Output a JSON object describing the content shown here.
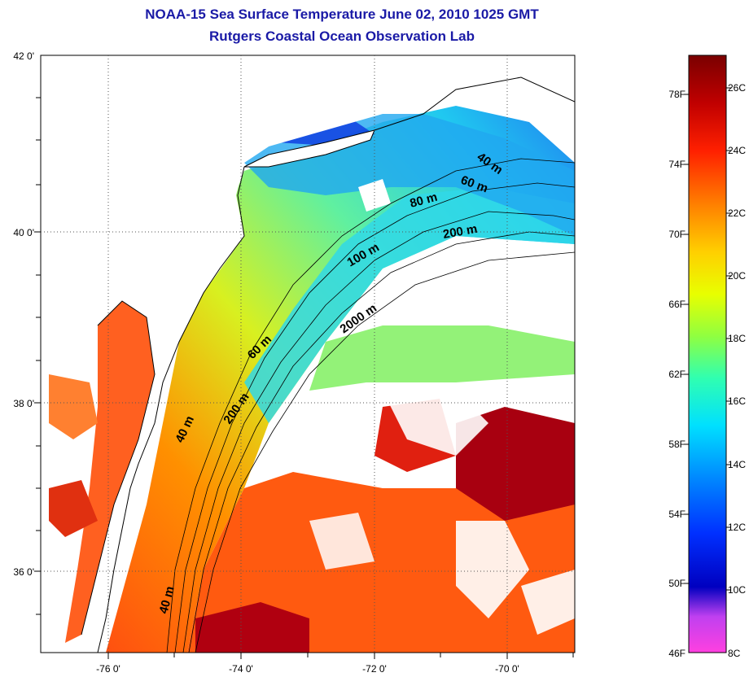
{
  "title": {
    "line1": "NOAA-15 Sea Surface Temperature June 02, 2010 1025 GMT",
    "line2": "Rutgers Coastal Ocean Observation Lab"
  },
  "map": {
    "lat_labels": [
      "42 0'",
      "40 0'",
      "38 0'",
      "36 0'"
    ],
    "lon_labels": [
      "-76 0'",
      "-74 0'",
      "-72 0'",
      "-70 0'"
    ],
    "contour_labels": [
      "40 m",
      "60 m",
      "80 m",
      "200 m",
      "100 m",
      "2000 m",
      "60 m",
      "200 m",
      "40 m",
      "40 m"
    ]
  },
  "colorbar": {
    "fahrenheit_labels": [
      "78F",
      "74F",
      "70F",
      "66F",
      "62F",
      "58F",
      "54F",
      "50F",
      "46F"
    ],
    "celsius_labels": [
      "26C",
      "24C",
      "22C",
      "20C",
      "18C",
      "16C",
      "14C",
      "12C",
      "10C",
      "8C"
    ],
    "colors": [
      "#7a0000",
      "#c00000",
      "#ff2000",
      "#ff8000",
      "#ffd000",
      "#e8ff00",
      "#90ff40",
      "#30ffb0",
      "#00e0ff",
      "#0090ff",
      "#0030ff",
      "#0000c0",
      "#8000ff",
      "#ff40e0"
    ]
  }
}
